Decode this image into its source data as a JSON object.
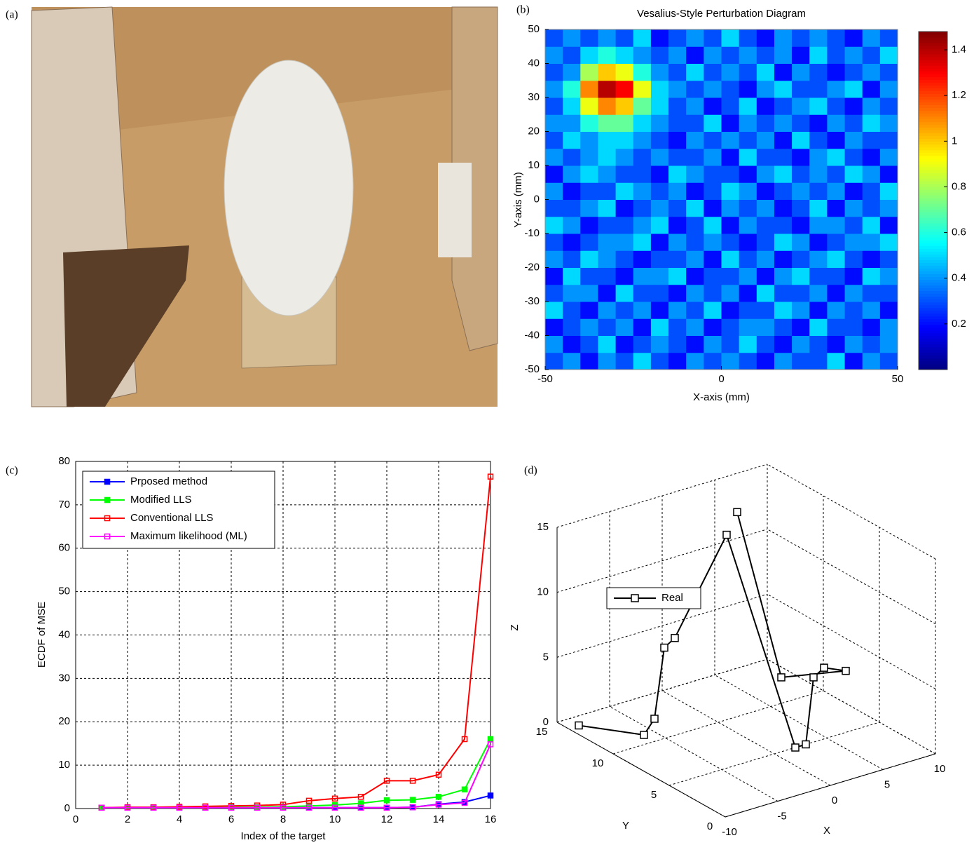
{
  "photo": {
    "label": "(a)"
  },
  "chart_data": [
    {
      "type": "heatmap",
      "label": "(b)",
      "title": "Vesalius-Style Perturbation Diagram",
      "xlabel": "X-axis (mm)",
      "ylabel": "Y-axis (mm)",
      "xlim": [
        -50,
        50
      ],
      "ylim": [
        -50,
        50
      ],
      "xticks": [
        -50,
        0,
        50
      ],
      "yticks": [
        -50,
        -40,
        -30,
        -20,
        -10,
        0,
        10,
        20,
        30,
        40,
        50
      ],
      "clim": [
        0,
        1.48
      ],
      "cticks": [
        0.2,
        0.4,
        0.6,
        0.8,
        1,
        1.2,
        1.4
      ],
      "colormap": "jet",
      "xbins": [
        -50,
        -45,
        -40,
        -35,
        -30,
        -25,
        -20,
        -15,
        -10,
        -5,
        0,
        5,
        10,
        15,
        20,
        25,
        30,
        35,
        40,
        45,
        50
      ],
      "ybins": [
        -50,
        -45,
        -40,
        -35,
        -30,
        -25,
        -20,
        -15,
        -10,
        -5,
        0,
        5,
        10,
        15,
        20,
        25,
        30,
        35,
        40,
        45,
        50
      ],
      "z": [
        [
          0.3,
          0.4,
          0.2,
          0.4,
          0.3,
          0.5,
          0.3,
          0.2,
          0.4,
          0.3,
          0.4,
          0.3,
          0.2,
          0.4,
          0.3,
          0.3,
          0.5,
          0.2,
          0.4,
          0.3
        ],
        [
          0.4,
          0.2,
          0.3,
          0.5,
          0.2,
          0.3,
          0.4,
          0.3,
          0.2,
          0.4,
          0.3,
          0.5,
          0.3,
          0.2,
          0.4,
          0.3,
          0.2,
          0.4,
          0.3,
          0.4
        ],
        [
          0.2,
          0.3,
          0.4,
          0.3,
          0.4,
          0.2,
          0.5,
          0.3,
          0.4,
          0.2,
          0.3,
          0.4,
          0.4,
          0.3,
          0.2,
          0.5,
          0.3,
          0.3,
          0.2,
          0.4
        ],
        [
          0.5,
          0.3,
          0.2,
          0.4,
          0.3,
          0.4,
          0.2,
          0.4,
          0.3,
          0.5,
          0.2,
          0.3,
          0.3,
          0.5,
          0.4,
          0.2,
          0.4,
          0.3,
          0.4,
          0.2
        ],
        [
          0.3,
          0.4,
          0.4,
          0.2,
          0.5,
          0.3,
          0.3,
          0.2,
          0.4,
          0.3,
          0.4,
          0.2,
          0.5,
          0.3,
          0.3,
          0.4,
          0.2,
          0.4,
          0.3,
          0.3
        ],
        [
          0.2,
          0.5,
          0.3,
          0.3,
          0.2,
          0.4,
          0.4,
          0.5,
          0.2,
          0.3,
          0.3,
          0.4,
          0.2,
          0.4,
          0.5,
          0.3,
          0.3,
          0.2,
          0.5,
          0.4
        ],
        [
          0.4,
          0.3,
          0.5,
          0.4,
          0.3,
          0.2,
          0.3,
          0.3,
          0.4,
          0.2,
          0.5,
          0.3,
          0.4,
          0.2,
          0.3,
          0.4,
          0.5,
          0.3,
          0.2,
          0.3
        ],
        [
          0.3,
          0.2,
          0.3,
          0.4,
          0.4,
          0.5,
          0.2,
          0.4,
          0.3,
          0.4,
          0.3,
          0.2,
          0.3,
          0.5,
          0.4,
          0.2,
          0.3,
          0.4,
          0.4,
          0.5
        ],
        [
          0.5,
          0.4,
          0.2,
          0.3,
          0.3,
          0.4,
          0.5,
          0.2,
          0.3,
          0.5,
          0.2,
          0.4,
          0.3,
          0.3,
          0.2,
          0.4,
          0.4,
          0.3,
          0.5,
          0.2
        ],
        [
          0.3,
          0.3,
          0.4,
          0.5,
          0.2,
          0.3,
          0.4,
          0.3,
          0.5,
          0.2,
          0.4,
          0.3,
          0.4,
          0.2,
          0.3,
          0.5,
          0.2,
          0.4,
          0.3,
          0.4
        ],
        [
          0.4,
          0.2,
          0.3,
          0.3,
          0.5,
          0.4,
          0.3,
          0.4,
          0.2,
          0.3,
          0.5,
          0.4,
          0.2,
          0.3,
          0.4,
          0.3,
          0.4,
          0.2,
          0.3,
          0.5
        ],
        [
          0.2,
          0.4,
          0.5,
          0.4,
          0.3,
          0.3,
          0.2,
          0.5,
          0.4,
          0.3,
          0.3,
          0.2,
          0.4,
          0.5,
          0.3,
          0.4,
          0.3,
          0.5,
          0.4,
          0.2
        ],
        [
          0.4,
          0.3,
          0.4,
          0.5,
          0.4,
          0.3,
          0.4,
          0.3,
          0.3,
          0.4,
          0.2,
          0.5,
          0.3,
          0.3,
          0.2,
          0.4,
          0.5,
          0.3,
          0.2,
          0.4
        ],
        [
          0.3,
          0.5,
          0.4,
          0.5,
          0.5,
          0.4,
          0.3,
          0.2,
          0.4,
          0.3,
          0.4,
          0.3,
          0.4,
          0.2,
          0.5,
          0.3,
          0.2,
          0.4,
          0.3,
          0.3
        ],
        [
          0.4,
          0.4,
          0.6,
          0.7,
          0.7,
          0.5,
          0.4,
          0.3,
          0.3,
          0.5,
          0.2,
          0.4,
          0.3,
          0.4,
          0.3,
          0.2,
          0.4,
          0.3,
          0.5,
          0.4
        ],
        [
          0.3,
          0.5,
          0.9,
          1.1,
          1.0,
          0.7,
          0.5,
          0.3,
          0.4,
          0.2,
          0.3,
          0.5,
          0.2,
          0.3,
          0.4,
          0.5,
          0.3,
          0.2,
          0.4,
          0.3
        ],
        [
          0.4,
          0.6,
          1.1,
          1.4,
          1.3,
          0.9,
          0.5,
          0.4,
          0.3,
          0.4,
          0.3,
          0.2,
          0.4,
          0.5,
          0.3,
          0.3,
          0.4,
          0.5,
          0.2,
          0.4
        ],
        [
          0.3,
          0.4,
          0.8,
          1.0,
          0.9,
          0.6,
          0.4,
          0.3,
          0.5,
          0.3,
          0.4,
          0.3,
          0.5,
          0.2,
          0.4,
          0.3,
          0.2,
          0.3,
          0.4,
          0.3
        ],
        [
          0.4,
          0.3,
          0.5,
          0.6,
          0.5,
          0.4,
          0.3,
          0.4,
          0.2,
          0.4,
          0.3,
          0.4,
          0.3,
          0.4,
          0.2,
          0.5,
          0.3,
          0.4,
          0.3,
          0.5
        ],
        [
          0.3,
          0.4,
          0.3,
          0.4,
          0.3,
          0.5,
          0.2,
          0.3,
          0.4,
          0.3,
          0.5,
          0.3,
          0.2,
          0.4,
          0.3,
          0.4,
          0.3,
          0.2,
          0.4,
          0.3
        ]
      ]
    },
    {
      "type": "line",
      "label": "(c)",
      "xlabel": "Index of the target",
      "ylabel": "ECDF of MSE",
      "x": [
        1,
        2,
        3,
        4,
        5,
        6,
        7,
        8,
        9,
        10,
        11,
        12,
        13,
        14,
        15,
        16
      ],
      "xlim": [
        0,
        16
      ],
      "xticks": [
        0,
        2,
        4,
        6,
        8,
        10,
        12,
        14,
        16
      ],
      "ylim": [
        0,
        80
      ],
      "yticks": [
        0,
        10,
        20,
        30,
        40,
        50,
        60,
        70,
        80
      ],
      "grid": true,
      "legend": "upper left",
      "series": [
        {
          "name": "Prposed method",
          "color": "#0000ff",
          "marker": "filled",
          "values": [
            0.2,
            0.2,
            0.2,
            0.2,
            0.2,
            0.2,
            0.2,
            0.2,
            0.2,
            0.2,
            0.2,
            0.2,
            0.3,
            1.0,
            1.5,
            3
          ]
        },
        {
          "name": "Modified LLS",
          "color": "#00ff00",
          "marker": "star",
          "values": [
            0.2,
            0.2,
            0.2,
            0.2,
            0.2,
            0.3,
            0.3,
            0.4,
            0.6,
            0.8,
            1.2,
            1.9,
            2.0,
            2.7,
            4.4,
            16
          ]
        },
        {
          "name": "Conventional LLS",
          "color": "#ff0000",
          "marker": "open",
          "values": [
            0.2,
            0.3,
            0.3,
            0.4,
            0.5,
            0.6,
            0.7,
            0.9,
            1.8,
            2.3,
            2.7,
            6.4,
            6.4,
            7.8,
            16,
            76.5
          ]
        },
        {
          "name": "Maximum likelihood (ML)",
          "color": "#ff00ff",
          "marker": "open",
          "values": [
            0.2,
            0.2,
            0.2,
            0.2,
            0.2,
            0.2,
            0.2,
            0.2,
            0.2,
            0.2,
            0.2,
            0.2,
            0.3,
            0.9,
            1.3,
            14.8
          ]
        }
      ]
    },
    {
      "type": "line3d",
      "label": "(d)",
      "xlabel": "X",
      "ylabel": "Y",
      "zlabel": "Z",
      "xlim": [
        -10,
        10
      ],
      "xticks": [
        -10,
        -5,
        0,
        5,
        10
      ],
      "ylim": [
        0,
        15
      ],
      "yticks": [
        0,
        5,
        10,
        15
      ],
      "zlim": [
        0,
        15
      ],
      "zticks": [
        0,
        5,
        10,
        15
      ],
      "grid": true,
      "legend": "upper left",
      "series": [
        {
          "name": "Real",
          "color": "#000000",
          "x": [
            -9,
            -6,
            -5,
            -3,
            -2,
            4,
            2,
            3,
            8,
            9,
            10,
            6,
            5
          ],
          "y": [
            14,
            11,
            11,
            12,
            12,
            13,
            5,
            5,
            9,
            9,
            8,
            10,
            13
          ],
          "z": [
            0,
            0,
            1,
            5.5,
            6,
            12,
            0,
            0,
            2,
            2.5,
            2.5,
            2,
            13.5
          ]
        }
      ]
    }
  ]
}
